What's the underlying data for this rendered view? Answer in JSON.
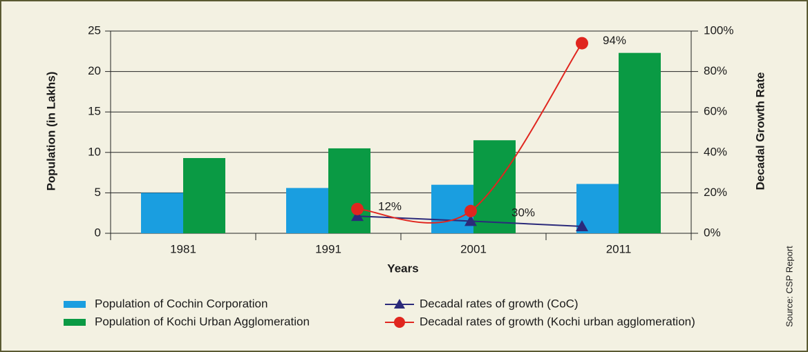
{
  "chart_data": {
    "type": "bar",
    "x_label": "Years",
    "y_label": "Population (in Lakhs)",
    "y2_label": "Decadal Growth Rate",
    "source": "Source: CSP Report",
    "categories": [
      "1981",
      "1991",
      "2001",
      "2011"
    ],
    "ylim": [
      0,
      25
    ],
    "yticks": [
      0,
      5,
      10,
      15,
      20,
      25
    ],
    "y2lim": [
      0,
      100
    ],
    "y2ticks": [
      {
        "value": 0,
        "label": "0%"
      },
      {
        "value": 20,
        "label": "20%"
      },
      {
        "value": 40,
        "label": "40%"
      },
      {
        "value": 60,
        "label": "60%"
      },
      {
        "value": 80,
        "label": "80%"
      },
      {
        "value": 100,
        "label": "100%"
      }
    ],
    "grid": true,
    "series": [
      {
        "name": "Population of Cochin Corporation",
        "type": "bar",
        "color": "#1a9ee0",
        "values": [
          5.0,
          5.6,
          6.0,
          6.1
        ]
      },
      {
        "name": "Population of Kochi Urban Agglomeration",
        "type": "bar",
        "color": "#0a9a44",
        "values": [
          9.3,
          10.5,
          11.5,
          22.3
        ]
      },
      {
        "name": "Decadal rates of growth (CoC)",
        "type": "line",
        "marker": "triangle",
        "axis": "y2",
        "color": "#2b2a7a",
        "values": [
          null,
          8.5,
          6,
          3.4
        ]
      },
      {
        "name": "Decadal rates of growth (Kochi urban agglomeration)",
        "type": "line",
        "marker": "circle",
        "smooth": true,
        "axis": "y2",
        "color": "#e0261f",
        "values": [
          null,
          12,
          11,
          94
        ],
        "value_labels": [
          null,
          "12%",
          null,
          "94%"
        ]
      }
    ],
    "annotations": [
      "30%"
    ]
  }
}
